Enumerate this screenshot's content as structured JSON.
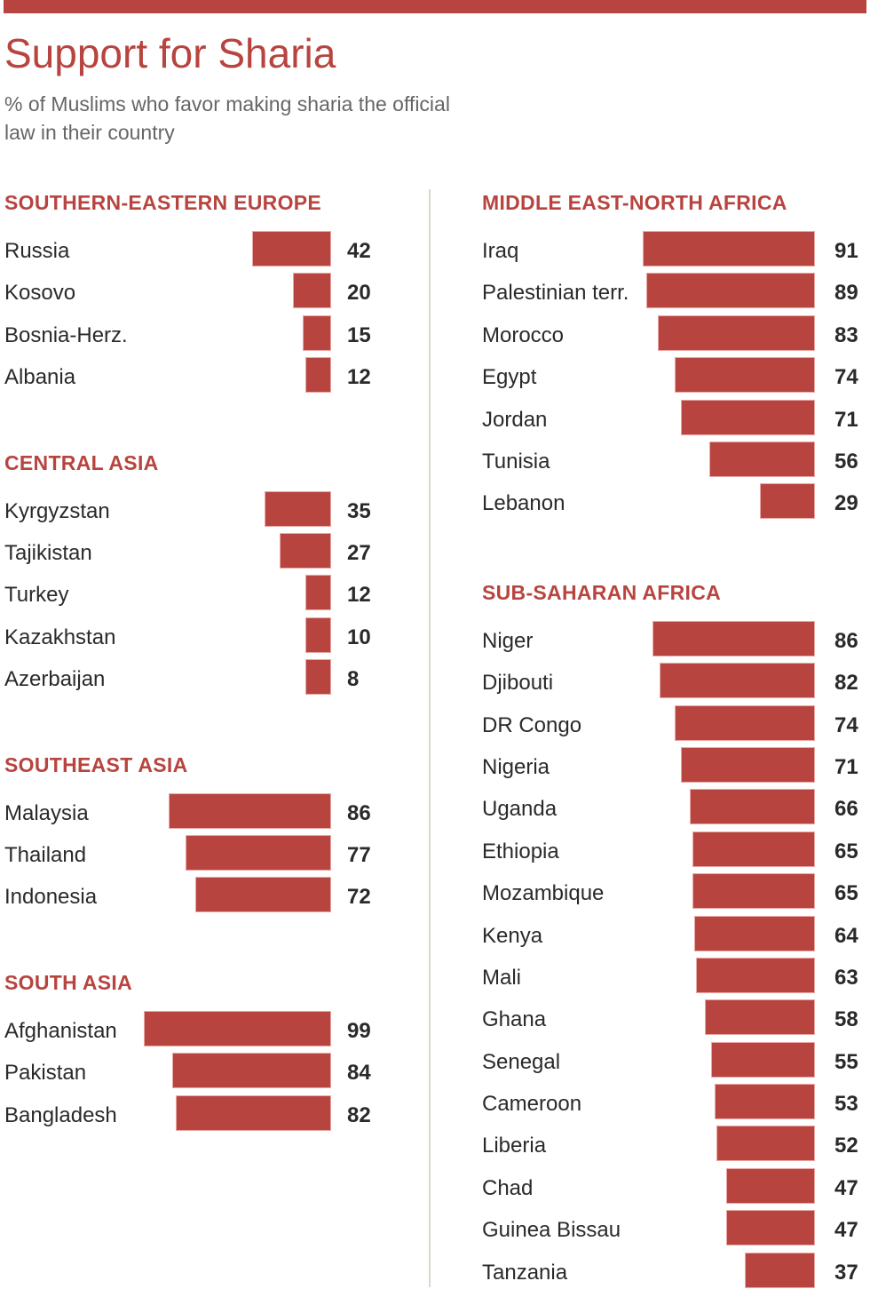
{
  "header": {
    "title": "Support for Sharia",
    "subtitle": "% of Muslims who favor making sharia the official law in their country"
  },
  "colors": {
    "accent": "#b8443f",
    "text": "#2a2a2a",
    "subtitle": "#666666",
    "divider": "#dcd7cf"
  },
  "chart_data": {
    "type": "bar",
    "orientation": "horizontal",
    "title": "Support for Sharia",
    "subtitle": "% of Muslims who favor making sharia the official law in their country",
    "xlabel": "",
    "ylabel": "",
    "xlim": [
      0,
      100
    ],
    "grid": false,
    "legend": "none",
    "groups": [
      {
        "name": "SOUTHERN-EASTERN EUROPE",
        "column": "left",
        "categories": [
          "Russia",
          "Kosovo",
          "Bosnia-Herz.",
          "Albania"
        ],
        "values": [
          42,
          20,
          15,
          12
        ]
      },
      {
        "name": "CENTRAL ASIA",
        "column": "left",
        "categories": [
          "Kyrgyzstan",
          "Tajikistan",
          "Turkey",
          "Kazakhstan",
          "Azerbaijan"
        ],
        "values": [
          35,
          27,
          12,
          10,
          8
        ]
      },
      {
        "name": "SOUTHEAST ASIA",
        "column": "left",
        "categories": [
          "Malaysia",
          "Thailand",
          "Indonesia"
        ],
        "values": [
          86,
          77,
          72
        ]
      },
      {
        "name": "SOUTH ASIA",
        "column": "left",
        "categories": [
          "Afghanistan",
          "Pakistan",
          "Bangladesh"
        ],
        "values": [
          99,
          84,
          82
        ]
      },
      {
        "name": "MIDDLE EAST-NORTH AFRICA",
        "column": "right",
        "categories": [
          "Iraq",
          "Palestinian terr.",
          "Morocco",
          "Egypt",
          "Jordan",
          "Tunisia",
          "Lebanon"
        ],
        "values": [
          91,
          89,
          83,
          74,
          71,
          56,
          29
        ]
      },
      {
        "name": "SUB-SAHARAN AFRICA",
        "column": "right",
        "categories": [
          "Niger",
          "Djibouti",
          "DR Congo",
          "Nigeria",
          "Uganda",
          "Ethiopia",
          "Mozambique",
          "Kenya",
          "Mali",
          "Ghana",
          "Senegal",
          "Cameroon",
          "Liberia",
          "Chad",
          "Guinea Bissau",
          "Tanzania"
        ],
        "values": [
          86,
          82,
          74,
          71,
          66,
          65,
          65,
          64,
          63,
          58,
          55,
          53,
          52,
          47,
          47,
          37
        ]
      }
    ]
  }
}
